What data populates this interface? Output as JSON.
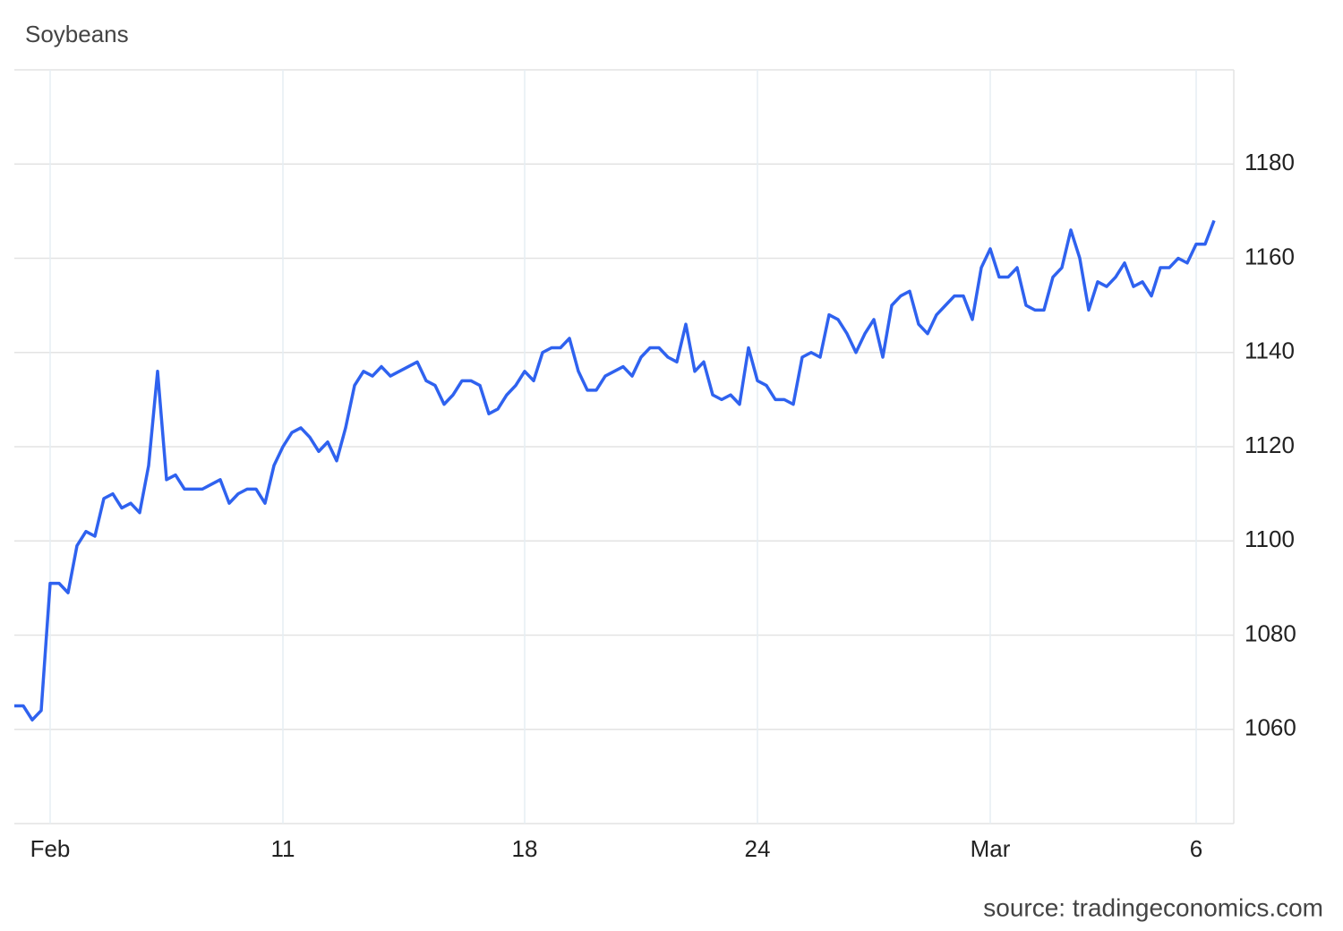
{
  "chart_data": {
    "type": "line",
    "title": "Soybeans",
    "source": "source: tradingeconomics.com",
    "color": "#2f62ef",
    "grid": true,
    "ylim": [
      1040,
      1200
    ],
    "yticks": [
      1060,
      1080,
      1100,
      1120,
      1140,
      1160,
      1180
    ],
    "categories": [
      null,
      null,
      null,
      null,
      "Feb",
      null,
      null,
      null,
      null,
      null,
      null,
      null,
      null,
      null,
      null,
      null,
      null,
      null,
      null,
      null,
      null,
      null,
      null,
      null,
      null,
      null,
      null,
      null,
      null,
      null,
      "11",
      null,
      null,
      null,
      null,
      null,
      null,
      null,
      null,
      null,
      null,
      null,
      null,
      null,
      null,
      null,
      null,
      null,
      null,
      null,
      null,
      null,
      null,
      null,
      null,
      null,
      null,
      "18",
      null,
      null,
      null,
      null,
      null,
      null,
      null,
      null,
      null,
      null,
      null,
      null,
      null,
      null,
      null,
      null,
      null,
      null,
      null,
      null,
      null,
      null,
      null,
      null,
      null,
      "24",
      null,
      null,
      null,
      null,
      null,
      null,
      null,
      null,
      null,
      null,
      null,
      null,
      null,
      null,
      null,
      null,
      null,
      null,
      null,
      null,
      null,
      null,
      null,
      null,
      null,
      "Mar",
      null,
      null,
      null,
      null,
      null,
      null,
      null,
      null,
      null,
      null,
      null,
      null,
      null,
      null,
      null,
      null,
      null,
      null,
      null,
      null,
      null,
      null,
      "6",
      null,
      null
    ],
    "values": [
      1065,
      1065,
      1062,
      1064,
      1091,
      1091,
      1089,
      1099,
      1102,
      1101,
      1109,
      1110,
      1107,
      1108,
      1106,
      1116,
      1136,
      1113,
      1114,
      1111,
      1111,
      1111,
      1112,
      1113,
      1108,
      1110,
      1111,
      1111,
      1108,
      1116,
      1120,
      1123,
      1124,
      1122,
      1119,
      1121,
      1117,
      1124,
      1133,
      1136,
      1135,
      1137,
      1135,
      1136,
      1137,
      1138,
      1134,
      1133,
      1129,
      1131,
      1134,
      1134,
      1133,
      1127,
      1128,
      1131,
      1133,
      1136,
      1134,
      1140,
      1141,
      1141,
      1143,
      1136,
      1132,
      1132,
      1135,
      1136,
      1137,
      1135,
      1139,
      1141,
      1141,
      1139,
      1138,
      1146,
      1136,
      1138,
      1131,
      1130,
      1131,
      1129,
      1141,
      1134,
      1133,
      1130,
      1130,
      1129,
      1139,
      1140,
      1139,
      1148,
      1147,
      1144,
      1140,
      1144,
      1147,
      1139,
      1150,
      1152,
      1153,
      1146,
      1144,
      1148,
      1150,
      1152,
      1152,
      1147,
      1158,
      1162,
      1156,
      1156,
      1158,
      1150,
      1149,
      1149,
      1156,
      1158,
      1166,
      1160,
      1149,
      1155,
      1154,
      1156,
      1159,
      1154,
      1155,
      1152,
      1158,
      1158,
      1160,
      1159,
      1163,
      1163,
      1168
    ]
  }
}
